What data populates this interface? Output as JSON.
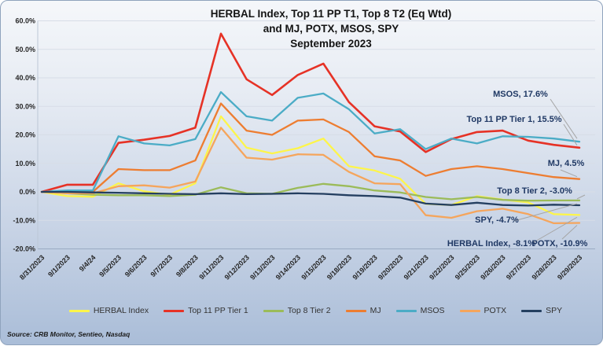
{
  "title": {
    "line1": "HERBAL Index, Top 11 PP T1, Top 8 T2  (Eq Wtd)",
    "line2": "and MJ, POTX, MSOS, SPY",
    "line3": "September 2023"
  },
  "source": "Source: CRB Monitor, Sentieo, Nasdaq",
  "chart_data": {
    "type": "line",
    "x": [
      "8/31/2023",
      "9/1/2023",
      "9/4/24",
      "9/5/2023",
      "9/6/2023",
      "9/7/2023",
      "9/8/2023",
      "9/11/2023",
      "9/12/2023",
      "9/13/2023",
      "9/14/2023",
      "9/15/2023",
      "9/18/2023",
      "9/19/2023",
      "9/20/2023",
      "9/21/2023",
      "9/22/2023",
      "9/25/2023",
      "9/26/2023",
      "9/27/2023",
      "9/28/2023",
      "9/29/2023"
    ],
    "series": [
      {
        "name": "HERBAL Index",
        "color": "#FDF54A",
        "values": [
          0,
          -1.5,
          -1.7,
          3.0,
          0.2,
          -1.0,
          3.0,
          26.5,
          15.5,
          13.5,
          15.3,
          18.7,
          9.0,
          7.5,
          4.6,
          -4.2,
          -4.6,
          -1.5,
          -2.7,
          -3.7,
          -7.8,
          -8.1
        ]
      },
      {
        "name": "Top 11 PP Tier 1",
        "color": "#E63226",
        "values": [
          0,
          2.5,
          2.5,
          17.2,
          18.3,
          19.6,
          22.5,
          55.5,
          39.5,
          34.0,
          41.0,
          45.0,
          31.5,
          23.0,
          21.2,
          14.0,
          18.5,
          21.0,
          21.5,
          18.0,
          16.5,
          15.5
        ]
      },
      {
        "name": "Top 8 Tier 2",
        "color": "#9BBB59",
        "values": [
          0,
          -0.5,
          -1.0,
          -1.2,
          -1.2,
          -1.5,
          -1.0,
          1.6,
          -0.5,
          -0.7,
          1.4,
          2.8,
          2.0,
          0.5,
          -0.2,
          -1.8,
          -2.6,
          -1.8,
          -2.8,
          -3.1,
          -3.0,
          -3.0
        ]
      },
      {
        "name": "MJ",
        "color": "#ED7D31",
        "values": [
          0,
          0,
          0,
          8.0,
          7.6,
          7.6,
          11.0,
          31.0,
          21.5,
          20.0,
          25.0,
          25.4,
          21.0,
          12.5,
          11.0,
          5.6,
          8.0,
          9.0,
          8.0,
          6.6,
          5.2,
          4.5
        ]
      },
      {
        "name": "MSOS",
        "color": "#4BACC6",
        "values": [
          0,
          0.5,
          0.5,
          19.5,
          17.0,
          16.3,
          18.5,
          35.0,
          26.5,
          25.0,
          33.0,
          34.5,
          29.0,
          20.5,
          22.0,
          15.0,
          18.7,
          17.0,
          19.5,
          19.3,
          18.7,
          17.6
        ]
      },
      {
        "name": "POTX",
        "color": "#F5A55C",
        "values": [
          0,
          -0.5,
          -0.5,
          2.0,
          2.3,
          1.5,
          3.6,
          22.5,
          12.0,
          11.3,
          13.2,
          13.0,
          7.0,
          3.0,
          2.7,
          -8.2,
          -9.1,
          -6.8,
          -5.9,
          -7.8,
          -11.0,
          -10.9
        ]
      },
      {
        "name": "SPY",
        "color": "#243F60",
        "values": [
          0,
          0,
          -0.2,
          -0.3,
          -0.5,
          -0.7,
          -0.8,
          -0.5,
          -0.8,
          -0.7,
          -0.5,
          -0.7,
          -1.2,
          -1.5,
          -2.0,
          -4.1,
          -4.6,
          -3.8,
          -4.6,
          -4.8,
          -4.5,
          -4.7
        ]
      }
    ],
    "ylim": [
      -20,
      60
    ],
    "ytick_step": 10,
    "ytick_format": "percent_1dp",
    "grid": true,
    "legend_position": "bottom",
    "annotations": [
      {
        "text": "MSOS, 17.6%",
        "series": "MSOS"
      },
      {
        "text": "Top 11 PP Tier 1, 15.5%",
        "series": "Top 11 PP Tier 1"
      },
      {
        "text": "MJ, 4.5%",
        "series": "MJ"
      },
      {
        "text": "Top 8 Tier 2, -3.0%",
        "series": "Top 8 Tier 2"
      },
      {
        "text": "SPY, -4.7%",
        "series": "SPY"
      },
      {
        "text": "HERBAL Index, -8.1%",
        "series": "HERBAL Index"
      },
      {
        "text": "POTX, -10.9%",
        "series": "POTX"
      }
    ],
    "annotation_color": "#1F3864",
    "leader_line_color": "#a6a6a6"
  }
}
